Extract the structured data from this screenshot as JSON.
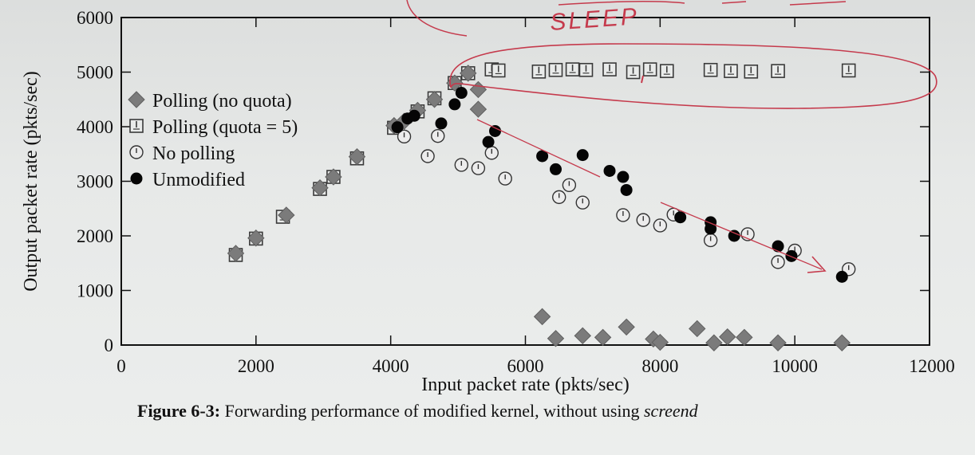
{
  "figure": {
    "caption_number": "Figure 6-3:",
    "caption_text": "Forwarding performance of modified kernel, without using",
    "caption_emph": "screend"
  },
  "chart_data": {
    "type": "scatter",
    "title": "",
    "xlabel": "Input packet rate (pkts/sec)",
    "ylabel": "Output packet rate (pkts/sec)",
    "xlim": [
      0,
      12000
    ],
    "ylim": [
      0,
      6000
    ],
    "xticks": [
      0,
      2000,
      4000,
      6000,
      8000,
      10000,
      12000
    ],
    "yticks": [
      0,
      1000,
      2000,
      3000,
      4000,
      5000,
      6000
    ],
    "legend_position": "left",
    "series": [
      {
        "name": "Polling (no quota)",
        "marker": "diamond-gray",
        "points": [
          [
            1700,
            1680
          ],
          [
            2000,
            1960
          ],
          [
            2450,
            2380
          ],
          [
            2950,
            2880
          ],
          [
            3150,
            3080
          ],
          [
            3500,
            3450
          ],
          [
            4050,
            4020
          ],
          [
            4200,
            4100
          ],
          [
            4400,
            4300
          ],
          [
            4650,
            4500
          ],
          [
            4950,
            4800
          ],
          [
            5150,
            4980
          ],
          [
            5300,
            4680
          ],
          [
            5300,
            4320
          ],
          [
            6250,
            520
          ],
          [
            6450,
            120
          ],
          [
            6850,
            170
          ],
          [
            7150,
            140
          ],
          [
            7500,
            330
          ],
          [
            7900,
            110
          ],
          [
            8000,
            50
          ],
          [
            8550,
            300
          ],
          [
            8800,
            40
          ],
          [
            9000,
            150
          ],
          [
            9250,
            140
          ],
          [
            9750,
            40
          ],
          [
            10700,
            40
          ]
        ]
      },
      {
        "name": "Polling (quota = 5)",
        "marker": "boxed-square",
        "points": [
          [
            1700,
            1650
          ],
          [
            2000,
            1950
          ],
          [
            2400,
            2350
          ],
          [
            2950,
            2860
          ],
          [
            3150,
            3080
          ],
          [
            3500,
            3420
          ],
          [
            4050,
            3980
          ],
          [
            4400,
            4280
          ],
          [
            4650,
            4520
          ],
          [
            4950,
            4800
          ],
          [
            5150,
            4980
          ],
          [
            5500,
            5050
          ],
          [
            5600,
            5030
          ],
          [
            6200,
            5010
          ],
          [
            6450,
            5040
          ],
          [
            6700,
            5050
          ],
          [
            6900,
            5040
          ],
          [
            7250,
            5050
          ],
          [
            7600,
            5000
          ],
          [
            7850,
            5050
          ],
          [
            8100,
            5020
          ],
          [
            8750,
            5040
          ],
          [
            9050,
            5020
          ],
          [
            9350,
            5010
          ],
          [
            9750,
            5020
          ],
          [
            10800,
            5030
          ]
        ]
      },
      {
        "name": "No polling",
        "marker": "open-circle",
        "points": [
          [
            4200,
            3820
          ],
          [
            4550,
            3460
          ],
          [
            4700,
            3830
          ],
          [
            5050,
            3300
          ],
          [
            5300,
            3240
          ],
          [
            5500,
            3520
          ],
          [
            5700,
            3050
          ],
          [
            6500,
            2710
          ],
          [
            6650,
            2930
          ],
          [
            6850,
            2610
          ],
          [
            7450,
            2380
          ],
          [
            7750,
            2290
          ],
          [
            8000,
            2190
          ],
          [
            8200,
            2390
          ],
          [
            8750,
            1920
          ],
          [
            9300,
            2030
          ],
          [
            9750,
            1520
          ],
          [
            10000,
            1730
          ],
          [
            10800,
            1390
          ]
        ]
      },
      {
        "name": "Unmodified",
        "marker": "filled-circle",
        "points": [
          [
            4100,
            3990
          ],
          [
            4250,
            4150
          ],
          [
            4350,
            4200
          ],
          [
            4750,
            4060
          ],
          [
            4950,
            4410
          ],
          [
            5050,
            4620
          ],
          [
            5450,
            3720
          ],
          [
            5550,
            3920
          ],
          [
            6250,
            3460
          ],
          [
            6450,
            3220
          ],
          [
            6850,
            3480
          ],
          [
            7250,
            3190
          ],
          [
            7450,
            3080
          ],
          [
            7500,
            2840
          ],
          [
            8300,
            2340
          ],
          [
            8750,
            2250
          ],
          [
            8750,
            2130
          ],
          [
            9100,
            2000
          ],
          [
            9750,
            1810
          ],
          [
            9950,
            1630
          ],
          [
            10700,
            1250
          ]
        ]
      }
    ],
    "annotations": [
      "SLEEP"
    ],
    "colors": {
      "diamond": "#7b7b7b",
      "square_edge": "#3a3a3a",
      "circle_edge": "#333333",
      "filled": "#050505",
      "ink": "#c53a4c",
      "axis": "#111111"
    }
  }
}
